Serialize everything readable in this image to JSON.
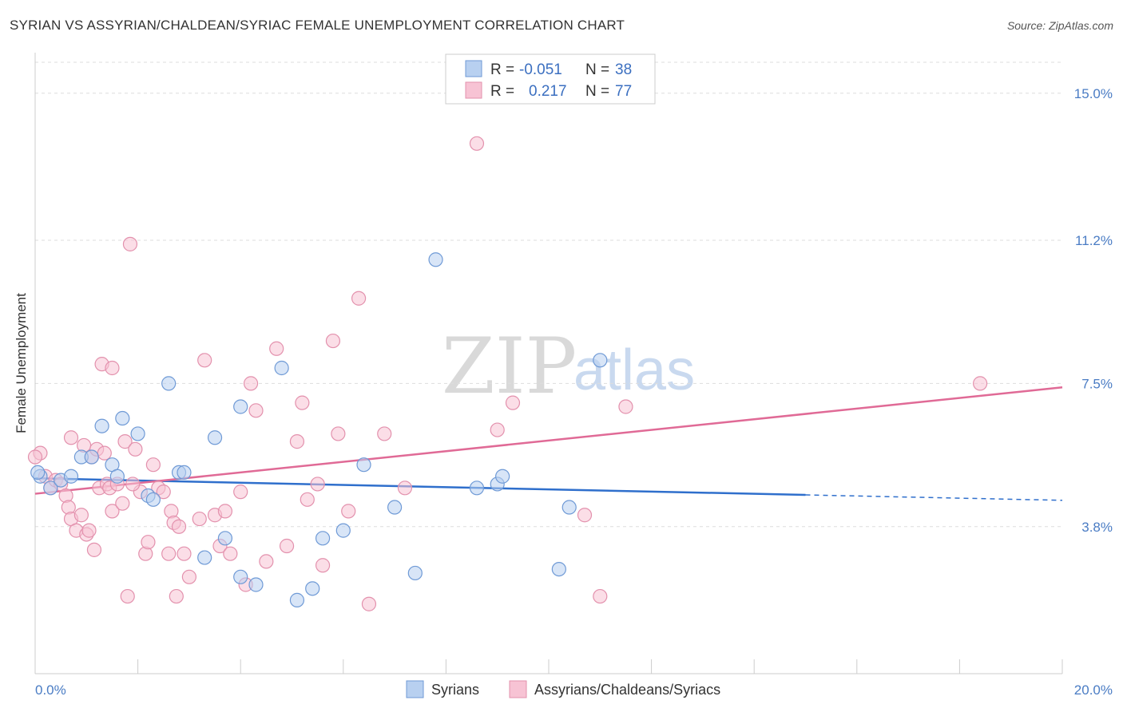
{
  "title": "SYRIAN VS ASSYRIAN/CHALDEAN/SYRIAC FEMALE UNEMPLOYMENT CORRELATION CHART",
  "source": "Source: ZipAtlas.com",
  "watermark": {
    "zip": "ZIP",
    "atlas": "atlas"
  },
  "colors": {
    "blue_fill": "#b8d0f0",
    "blue_stroke": "#6f9ad6",
    "blue_line": "#2f6fcc",
    "pink_fill": "#f7c3d4",
    "pink_stroke": "#e391ad",
    "pink_line": "#e06a96",
    "tick_text": "#4a7cc4",
    "grid": "#dddddd"
  },
  "legend": {
    "rows": [
      {
        "r_label": "R =",
        "r_value": "-0.051",
        "n_label": "N =",
        "n_value": "38"
      },
      {
        "r_label": "R =",
        "r_value": "0.217",
        "n_label": "N =",
        "n_value": "77"
      }
    ]
  },
  "bottom_legend": [
    "Syrians",
    "Assyrians/Chaldeans/Syriacs"
  ],
  "chart_data": {
    "type": "scatter",
    "xlabel": "",
    "ylabel": "Female Unemployment",
    "xlim": [
      0,
      20
    ],
    "ylim": [
      0,
      15.8
    ],
    "x_tick_labels": [
      {
        "value": 0,
        "label": "0.0%"
      },
      {
        "value": 20,
        "label": "20.0%"
      }
    ],
    "y_ticks": [
      {
        "value": 3.8,
        "label": "3.8%"
      },
      {
        "value": 7.5,
        "label": "7.5%"
      },
      {
        "value": 11.2,
        "label": "11.2%"
      },
      {
        "value": 15.0,
        "label": "15.0%"
      }
    ],
    "x_minor_ticks": [
      0,
      2,
      4,
      6,
      8,
      10,
      12,
      14,
      16,
      18,
      20
    ],
    "grid": true,
    "legend_position": "top-center",
    "series": [
      {
        "name": "Syrians",
        "color": "#6f9ad6",
        "trend": {
          "x_start": 0,
          "y_start": 5.05,
          "x_solid_end": 15.0,
          "y_solid_end": 4.62,
          "x_end": 20,
          "y_end": 4.48
        },
        "points": [
          [
            0.1,
            5.1
          ],
          [
            0.3,
            4.8
          ],
          [
            0.5,
            5.0
          ],
          [
            0.7,
            5.1
          ],
          [
            0.9,
            5.6
          ],
          [
            1.1,
            5.6
          ],
          [
            1.3,
            6.4
          ],
          [
            1.5,
            5.4
          ],
          [
            1.6,
            5.1
          ],
          [
            1.7,
            6.6
          ],
          [
            2.0,
            6.2
          ],
          [
            2.2,
            4.6
          ],
          [
            2.3,
            4.5
          ],
          [
            2.6,
            7.5
          ],
          [
            2.8,
            5.2
          ],
          [
            2.9,
            5.2
          ],
          [
            3.3,
            3.0
          ],
          [
            3.5,
            6.1
          ],
          [
            3.7,
            3.5
          ],
          [
            4.0,
            6.9
          ],
          [
            4.0,
            2.5
          ],
          [
            4.3,
            2.3
          ],
          [
            4.8,
            7.9
          ],
          [
            5.1,
            1.9
          ],
          [
            5.4,
            2.2
          ],
          [
            5.6,
            3.5
          ],
          [
            6.0,
            3.7
          ],
          [
            6.4,
            5.4
          ],
          [
            7.0,
            4.3
          ],
          [
            7.4,
            2.6
          ],
          [
            7.8,
            10.7
          ],
          [
            8.6,
            4.8
          ],
          [
            9.0,
            4.9
          ],
          [
            9.1,
            5.1
          ],
          [
            10.2,
            2.7
          ],
          [
            10.4,
            4.3
          ],
          [
            11.0,
            8.1
          ],
          [
            0.05,
            5.2
          ]
        ]
      },
      {
        "name": "Assyrians/Chaldeans/Syriacs",
        "color": "#e391ad",
        "trend": {
          "x_start": 0,
          "y_start": 4.65,
          "x_end": 20,
          "y_end": 7.4
        },
        "points": [
          [
            0.1,
            5.7
          ],
          [
            0.2,
            5.1
          ],
          [
            0.3,
            4.8
          ],
          [
            0.4,
            5.0
          ],
          [
            0.5,
            4.9
          ],
          [
            0.6,
            4.6
          ],
          [
            0.65,
            4.3
          ],
          [
            0.7,
            4.0
          ],
          [
            0.7,
            6.1
          ],
          [
            0.8,
            3.7
          ],
          [
            0.9,
            4.1
          ],
          [
            0.95,
            5.9
          ],
          [
            1.0,
            3.6
          ],
          [
            1.05,
            3.7
          ],
          [
            1.1,
            5.6
          ],
          [
            1.15,
            3.2
          ],
          [
            1.2,
            5.8
          ],
          [
            1.25,
            4.8
          ],
          [
            1.3,
            8.0
          ],
          [
            1.35,
            5.7
          ],
          [
            1.4,
            4.9
          ],
          [
            1.45,
            4.8
          ],
          [
            1.5,
            4.2
          ],
          [
            1.5,
            7.9
          ],
          [
            1.6,
            4.9
          ],
          [
            1.7,
            4.4
          ],
          [
            1.75,
            6.0
          ],
          [
            1.8,
            2.0
          ],
          [
            1.85,
            11.1
          ],
          [
            1.95,
            5.8
          ],
          [
            2.05,
            4.7
          ],
          [
            2.15,
            3.1
          ],
          [
            2.2,
            3.4
          ],
          [
            2.3,
            5.4
          ],
          [
            2.4,
            4.8
          ],
          [
            2.5,
            4.7
          ],
          [
            2.6,
            3.1
          ],
          [
            2.65,
            4.2
          ],
          [
            2.7,
            3.9
          ],
          [
            2.75,
            2.0
          ],
          [
            2.8,
            3.8
          ],
          [
            2.9,
            3.1
          ],
          [
            3.0,
            2.5
          ],
          [
            3.2,
            4.0
          ],
          [
            3.3,
            8.1
          ],
          [
            3.5,
            4.1
          ],
          [
            3.6,
            3.3
          ],
          [
            3.7,
            4.2
          ],
          [
            3.8,
            3.1
          ],
          [
            4.0,
            4.7
          ],
          [
            4.1,
            2.3
          ],
          [
            4.2,
            7.5
          ],
          [
            4.3,
            6.8
          ],
          [
            4.5,
            2.9
          ],
          [
            4.7,
            8.4
          ],
          [
            4.9,
            3.3
          ],
          [
            5.1,
            6.0
          ],
          [
            5.2,
            7.0
          ],
          [
            5.3,
            4.5
          ],
          [
            5.5,
            4.9
          ],
          [
            5.6,
            2.8
          ],
          [
            5.8,
            8.6
          ],
          [
            5.9,
            6.2
          ],
          [
            6.1,
            4.2
          ],
          [
            6.3,
            9.7
          ],
          [
            6.5,
            1.8
          ],
          [
            6.8,
            6.2
          ],
          [
            7.2,
            4.8
          ],
          [
            8.6,
            13.7
          ],
          [
            9.0,
            6.3
          ],
          [
            9.3,
            7.0
          ],
          [
            10.7,
            4.1
          ],
          [
            11.0,
            2.0
          ],
          [
            11.5,
            6.9
          ],
          [
            18.4,
            7.5
          ],
          [
            0.0,
            5.6
          ],
          [
            1.9,
            4.9
          ]
        ]
      }
    ]
  }
}
